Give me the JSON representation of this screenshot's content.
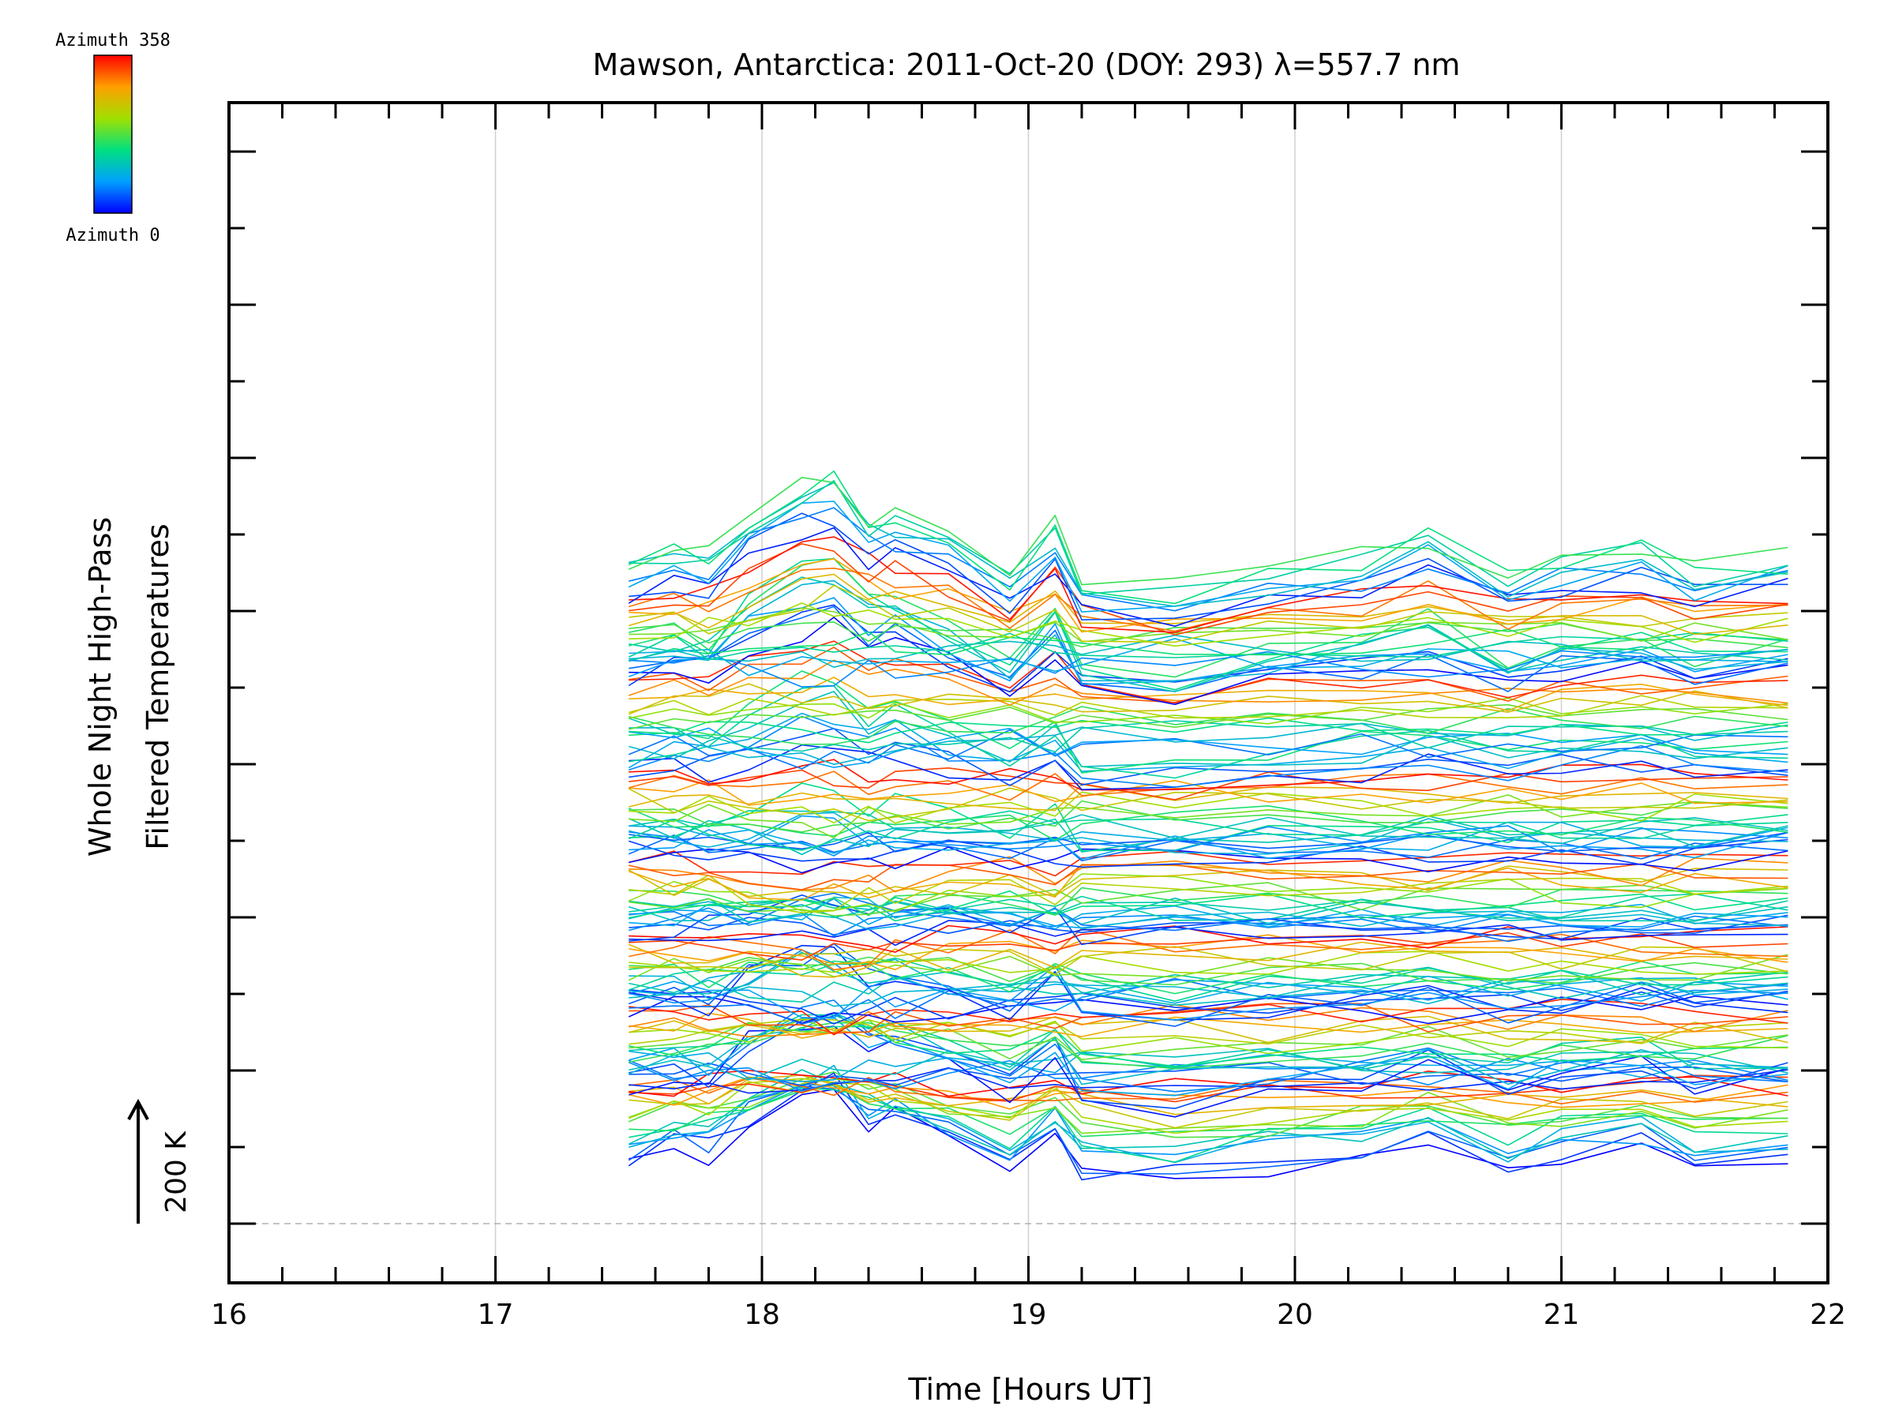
{
  "chart_data": {
    "type": "line",
    "title": "Mawson, Antarctica: 2011-Oct-20 (DOY: 293) λ=557.7 nm",
    "xlabel": "Time [Hours UT]",
    "ylabel_line1": "Whole Night High-Pass",
    "ylabel_line2": "Filtered Temperatures",
    "scale_bar_label": "200 K",
    "xlim": [
      16,
      22
    ],
    "x_ticks": [
      "16",
      "17",
      "18",
      "19",
      "20",
      "21",
      "22"
    ],
    "grid": "vertical",
    "colorbar": {
      "top_label": "Azimuth 358",
      "bottom_label": "Azimuth 0",
      "colormap": "rainbow",
      "azimuth_min": 0,
      "azimuth_max": 358,
      "placement": "top-left"
    },
    "x": [
      17.5,
      17.67,
      17.8,
      17.95,
      18.15,
      18.27,
      18.4,
      18.5,
      18.7,
      18.93,
      19.1,
      19.2,
      19.55,
      19.9,
      20.25,
      20.5,
      20.8,
      21.0,
      21.3,
      21.5,
      21.85
    ],
    "bands": [
      {
        "base": 1.5,
        "amp": 0.9,
        "phase": 0.0
      },
      {
        "base": 2.5,
        "amp": 1.0,
        "phase": 0.6
      },
      {
        "base": 3.5,
        "amp": 1.0,
        "phase": 1.1
      },
      {
        "base": 4.5,
        "amp": 1.1,
        "phase": 1.7
      },
      {
        "base": 5.6,
        "amp": 1.1,
        "phase": 2.3
      },
      {
        "base": 6.9,
        "amp": 1.2,
        "phase": 2.9
      },
      {
        "base": 8.0,
        "amp": 1.1,
        "phase": 3.4
      }
    ],
    "series_per_band": 22,
    "profile": [
      0.0,
      0.12,
      0.05,
      0.55,
      0.95,
      1.0,
      0.55,
      0.6,
      0.3,
      -0.15,
      0.45,
      -0.25,
      -0.35,
      -0.1,
      0.05,
      0.3,
      -0.2,
      0.05,
      0.2,
      -0.1,
      0.05
    ]
  }
}
